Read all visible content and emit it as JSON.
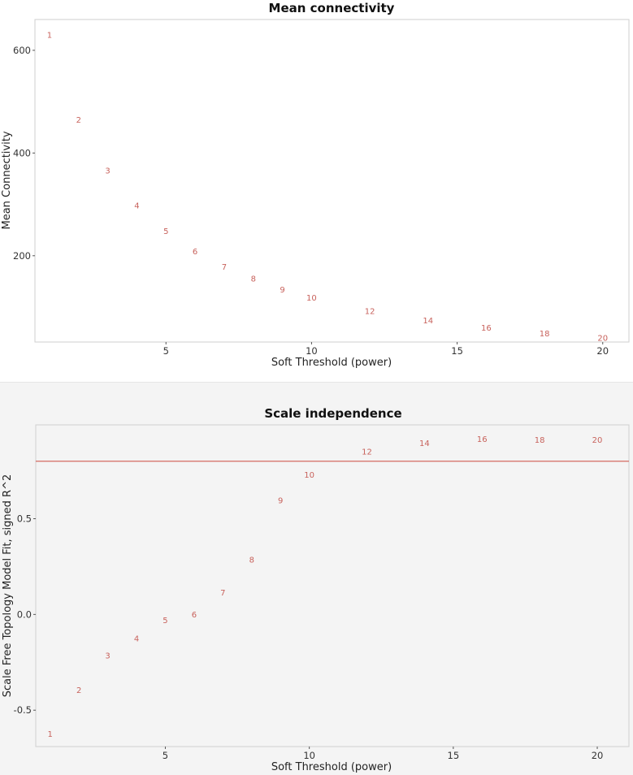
{
  "chart_data": [
    {
      "type": "scatter",
      "title": "Mean connectivity",
      "xlabel": "Soft Threshold (power)",
      "ylabel": "Mean Connectivity",
      "xlim": [
        0.5,
        20.9
      ],
      "ylim": [
        32,
        660
      ],
      "xticks": [
        5,
        10,
        15,
        20
      ],
      "yticks": [
        200,
        400,
        600
      ],
      "points": [
        {
          "x": 1,
          "y": 630,
          "label": "1"
        },
        {
          "x": 2,
          "y": 465,
          "label": "2"
        },
        {
          "x": 3,
          "y": 366,
          "label": "3"
        },
        {
          "x": 4,
          "y": 298,
          "label": "4"
        },
        {
          "x": 5,
          "y": 248,
          "label": "5"
        },
        {
          "x": 6,
          "y": 208,
          "label": "6"
        },
        {
          "x": 7,
          "y": 178,
          "label": "7"
        },
        {
          "x": 8,
          "y": 155,
          "label": "8"
        },
        {
          "x": 9,
          "y": 134,
          "label": "9"
        },
        {
          "x": 10,
          "y": 118,
          "label": "10"
        },
        {
          "x": 12,
          "y": 92,
          "label": "12"
        },
        {
          "x": 14,
          "y": 74,
          "label": "14"
        },
        {
          "x": 16,
          "y": 60,
          "label": "16"
        },
        {
          "x": 18,
          "y": 49,
          "label": "18"
        },
        {
          "x": 20,
          "y": 40,
          "label": "20"
        }
      ],
      "point_color": "#c8625c"
    },
    {
      "type": "scatter",
      "title": "Scale independence",
      "xlabel": "Soft Threshold (power)",
      "ylabel": "Scale Free Topology Model Fit, signed R^2",
      "xlim": [
        0.5,
        21.1
      ],
      "ylim": [
        -0.69,
        0.99
      ],
      "xticks": [
        5,
        10,
        15,
        20
      ],
      "yticks": [
        -0.5,
        0.0,
        0.5
      ],
      "hline": 0.8,
      "points": [
        {
          "x": 1,
          "y": -0.625,
          "label": "1"
        },
        {
          "x": 2,
          "y": -0.395,
          "label": "2"
        },
        {
          "x": 3,
          "y": -0.215,
          "label": "3"
        },
        {
          "x": 4,
          "y": -0.125,
          "label": "4"
        },
        {
          "x": 5,
          "y": -0.03,
          "label": "5"
        },
        {
          "x": 6,
          "y": 0.0,
          "label": "6"
        },
        {
          "x": 7,
          "y": 0.115,
          "label": "7"
        },
        {
          "x": 8,
          "y": 0.285,
          "label": "8"
        },
        {
          "x": 9,
          "y": 0.595,
          "label": "9"
        },
        {
          "x": 10,
          "y": 0.73,
          "label": "10"
        },
        {
          "x": 12,
          "y": 0.85,
          "label": "12"
        },
        {
          "x": 14,
          "y": 0.895,
          "label": "14"
        },
        {
          "x": 16,
          "y": 0.915,
          "label": "16"
        },
        {
          "x": 18,
          "y": 0.912,
          "label": "18"
        },
        {
          "x": 20,
          "y": 0.912,
          "label": "20"
        }
      ],
      "point_color": "#c8625c",
      "hline_color": "#d46a61"
    }
  ]
}
